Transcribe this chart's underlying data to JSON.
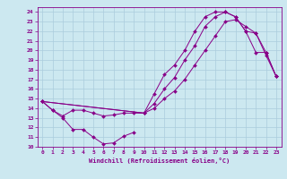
{
  "xlabel": "Windchill (Refroidissement éolien,°C)",
  "bg_color": "#cce8f0",
  "grid_color": "#aaccdd",
  "line_color": "#880088",
  "xlim": [
    -0.5,
    23.5
  ],
  "ylim": [
    10,
    24.5
  ],
  "xticks": [
    0,
    1,
    2,
    3,
    4,
    5,
    6,
    7,
    8,
    9,
    10,
    11,
    12,
    13,
    14,
    15,
    16,
    17,
    18,
    19,
    20,
    21,
    22,
    23
  ],
  "yticks": [
    10,
    11,
    12,
    13,
    14,
    15,
    16,
    17,
    18,
    19,
    20,
    21,
    22,
    23,
    24
  ],
  "series": [
    {
      "x": [
        0,
        1,
        2,
        3,
        4,
        5,
        6,
        7,
        8,
        9
      ],
      "y": [
        14.7,
        13.8,
        13.0,
        11.8,
        11.8,
        11.0,
        10.3,
        10.4,
        11.1,
        11.5
      ]
    },
    {
      "x": [
        0,
        1,
        2,
        3,
        4,
        5,
        6,
        7,
        8,
        9,
        10,
        11,
        12,
        13,
        14,
        15,
        16,
        17,
        18,
        19,
        20,
        21,
        22,
        23
      ],
      "y": [
        14.7,
        13.8,
        13.2,
        13.8,
        13.8,
        13.5,
        13.2,
        13.3,
        13.5,
        13.5,
        13.5,
        14.0,
        15.0,
        15.8,
        17.0,
        18.5,
        20.0,
        21.5,
        23.0,
        23.2,
        22.5,
        21.8,
        19.5,
        17.3
      ]
    },
    {
      "x": [
        0,
        10,
        11,
        12,
        13,
        14,
        15,
        16,
        17,
        18,
        19,
        20,
        21,
        22,
        23
      ],
      "y": [
        14.7,
        13.5,
        15.5,
        17.5,
        18.5,
        20.0,
        22.0,
        23.5,
        24.0,
        24.0,
        23.5,
        22.0,
        21.8,
        19.8,
        17.3
      ]
    },
    {
      "x": [
        0,
        10,
        11,
        12,
        13,
        14,
        15,
        16,
        17,
        18,
        19,
        20,
        21,
        22,
        23
      ],
      "y": [
        14.7,
        13.5,
        14.5,
        16.0,
        17.2,
        19.0,
        20.5,
        22.5,
        23.5,
        24.0,
        23.5,
        22.0,
        19.8,
        19.8,
        17.3
      ]
    }
  ]
}
